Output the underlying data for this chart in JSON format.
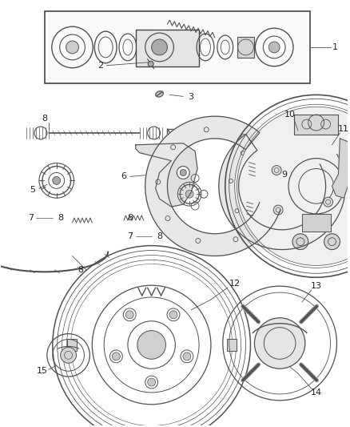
{
  "bg_color": "#ffffff",
  "line_color": "#505050",
  "fig_width": 4.38,
  "fig_height": 5.33,
  "dpi": 100
}
